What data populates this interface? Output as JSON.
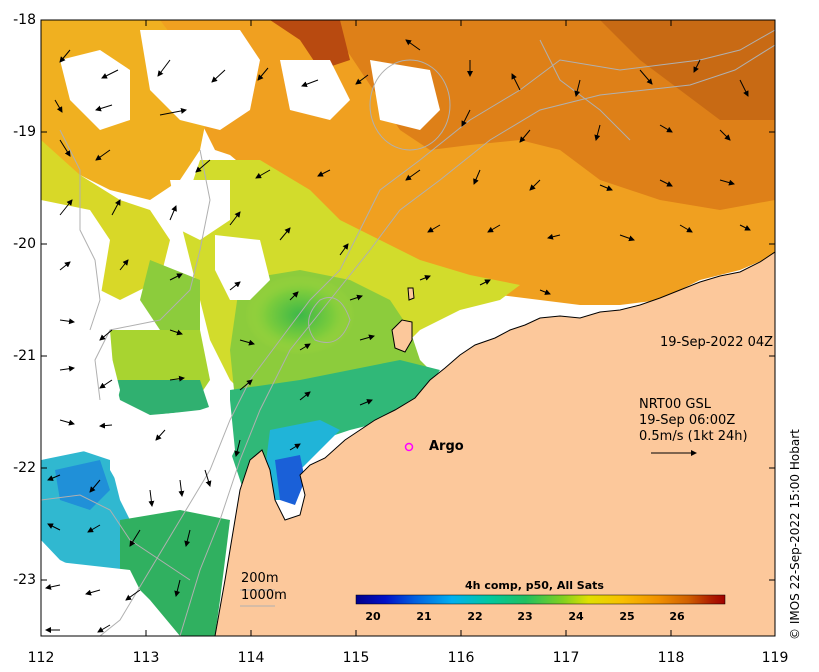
{
  "map": {
    "lon_ticks": [
      "112",
      "113",
      "114",
      "115",
      "116",
      "117",
      "118",
      "119"
    ],
    "lat_ticks": [
      "-18",
      "-19",
      "-20",
      "-21",
      "-22",
      "-23"
    ],
    "lon_range": [
      112,
      119
    ],
    "lat_range": [
      -23.5,
      -18
    ]
  },
  "annotations": {
    "image_time": "19-Sep-2022 04Z",
    "current_source": "NRT00 GSL",
    "current_time": "19-Sep 06:00Z",
    "current_scale": "0.5m/s (1kt 24h)",
    "argo_label": "Argo",
    "depth_200": "200m",
    "depth_1000": "1000m",
    "credit": "© IMOS 22-Sep-2022 15:00 Hobart"
  },
  "colorbar": {
    "title": "4h comp, p50, All Sats",
    "ticks": [
      "20",
      "21",
      "22",
      "23",
      "24",
      "25",
      "26"
    ],
    "range": [
      19.6,
      26.9
    ],
    "colors": [
      "#00008b",
      "#0010c8",
      "#0060e0",
      "#00b0f0",
      "#00c8a0",
      "#20c060",
      "#80d020",
      "#e0e000",
      "#f8c000",
      "#f09000",
      "#d06000",
      "#b02000",
      "#a00000"
    ]
  },
  "colors": {
    "land": "#fcc89b",
    "argo_marker": "#ff00ff"
  }
}
